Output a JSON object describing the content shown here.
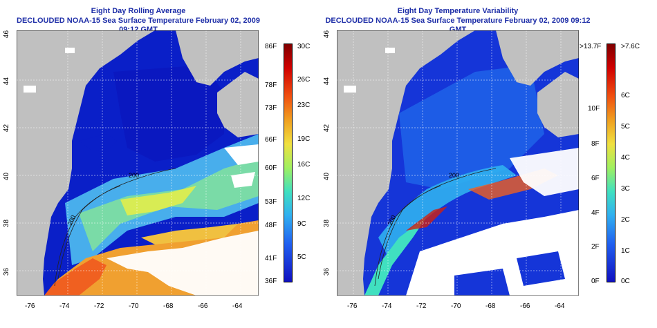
{
  "left_panel": {
    "title_line1": "Eight Day Rolling Average",
    "title_line2": "DECLOUDED NOAA-15 Sea Surface Temperature February 02, 2009 09:12 GMT",
    "lat_ticks": [
      "46",
      "44",
      "42",
      "40",
      "38",
      "36"
    ],
    "lon_ticks": [
      "-76",
      "-74",
      "-72",
      "-70",
      "-68",
      "-66",
      "-64"
    ],
    "contour_labels": [
      "200",
      "200"
    ],
    "colorbar": {
      "fahrenheit": [
        "86F",
        "78F",
        "73F",
        "66F",
        "60F",
        "53F",
        "48F",
        "41F",
        "36F"
      ],
      "celsius": [
        "30C",
        "26C",
        "23C",
        "19C",
        "16C",
        "12C",
        "9C",
        "5C"
      ]
    }
  },
  "right_panel": {
    "title_line1": "Eight Day Temperature Variability",
    "title_line2": "DECLOUDED NOAA-15 Sea Surface Temperature February 02, 2009 09:12 GMT",
    "lat_ticks": [
      "46",
      "44",
      "42",
      "40",
      "38",
      "36"
    ],
    "lon_ticks": [
      "-76",
      "-74",
      "-72",
      "-70",
      "-68",
      "-66",
      "-64"
    ],
    "contour_labels": [
      "200",
      "200"
    ],
    "colorbar": {
      "fahrenheit": [
        ">13.7F",
        "10F",
        "8F",
        "6F",
        "4F",
        "2F",
        "0F"
      ],
      "celsius": [
        ">7.6C",
        "6C",
        "5C",
        "4C",
        "3C",
        "2C",
        "1C",
        "0C"
      ]
    }
  },
  "colors": {
    "land": "#c0c0c0",
    "title": "#1f2fa8",
    "deep_blue": "#0a1fd0",
    "cloud": "#ffffff"
  }
}
